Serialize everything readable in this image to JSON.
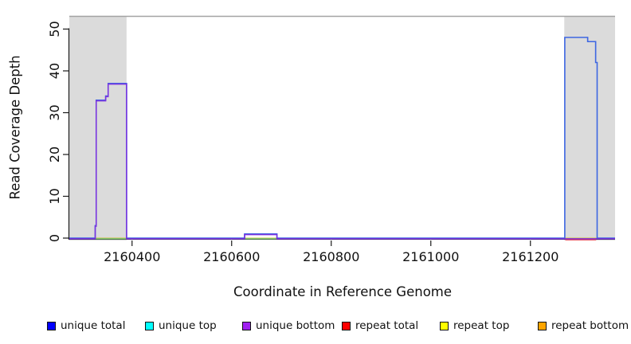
{
  "axes": {
    "x": {
      "title": "Coordinate in Reference Genome",
      "range": [
        2160274,
        2161370
      ],
      "ticks": [
        2160400,
        2160600,
        2160800,
        2161000,
        2161200
      ]
    },
    "y": {
      "title": "Read Coverage Depth",
      "range": [
        0,
        53
      ],
      "ticks": [
        0,
        10,
        20,
        30,
        40,
        50
      ]
    }
  },
  "chart_data": {
    "type": "line",
    "subtype": "step-coverage",
    "x_unit": "reference genome coordinate",
    "y_unit": "read coverage depth",
    "top_boundary_value": 53,
    "highlight_regions": [
      {
        "start": 2160274,
        "end": 2160389
      },
      {
        "start": 2161268,
        "end": 2161370
      }
    ],
    "series": [
      {
        "name": "unique-top",
        "label": "unique top",
        "color": "#00FFFF",
        "line_color": "#00CCCC",
        "baseline": true,
        "dy": 0.4,
        "width": 1.2,
        "segments": []
      },
      {
        "name": "repeat-top",
        "label": "repeat top",
        "color": "#FFFF00",
        "line_color": "#E8E800",
        "baseline": true,
        "dy": 0.4,
        "width": 1.2,
        "segments": []
      },
      {
        "name": "repeat-bottom",
        "label": "repeat bottom",
        "color": "#FFA500",
        "line_color": "#F0A000",
        "baseline": true,
        "dy": 0.4,
        "width": 1.2,
        "segments": []
      },
      {
        "name": "repeat-total",
        "label": "repeat total",
        "color": "#FF0000",
        "line_color": "#EE3344",
        "baseline": false,
        "dy": 2.0,
        "width": 1.5,
        "segments": [
          [
            2161270,
            2161332,
            0
          ]
        ]
      },
      {
        "name": "baseline-marker-green",
        "label": null,
        "color": "#7CCE7C",
        "line_color": "#7CCE7C",
        "baseline": false,
        "dy": 0.8,
        "width": 1.3,
        "segments": [
          [
            2160326,
            2160389,
            0
          ],
          [
            2160626,
            2160691,
            0
          ]
        ]
      },
      {
        "name": "unique-total",
        "label": "unique total",
        "color": "#0000FF",
        "line_color": "#3D66E2",
        "baseline": true,
        "dy": 0,
        "width": 1.6,
        "segments": [
          [
            2160326,
            2160328,
            3
          ],
          [
            2160328,
            2160347,
            33
          ],
          [
            2160347,
            2160352,
            34
          ],
          [
            2160352,
            2160389,
            37
          ],
          [
            2160626,
            2160691,
            1
          ],
          [
            2161269,
            2161315,
            48
          ],
          [
            2161315,
            2161331,
            47
          ],
          [
            2161331,
            2161334,
            42
          ]
        ]
      },
      {
        "name": "unique-bottom",
        "label": "unique bottom",
        "color": "#A020F0",
        "line_color": "#7B33E0",
        "baseline": true,
        "dy": 0.9,
        "width": 1.5,
        "segments": [
          [
            2160326,
            2160328,
            3
          ],
          [
            2160328,
            2160347,
            33
          ],
          [
            2160347,
            2160352,
            34
          ],
          [
            2160352,
            2160389,
            37
          ],
          [
            2160626,
            2160691,
            1
          ]
        ]
      }
    ]
  },
  "legend": {
    "items": [
      {
        "label": "unique total",
        "color": "#0000FF"
      },
      {
        "label": "unique top",
        "color": "#00FFFF"
      },
      {
        "label": "unique bottom",
        "color": "#A020F0"
      },
      {
        "label": "repeat total",
        "color": "#FF0000"
      },
      {
        "label": "repeat top",
        "color": "#FFFF00"
      },
      {
        "label": "repeat bottom",
        "color": "#FFA500"
      }
    ]
  },
  "colors": {
    "region_fill": "#DBDBDB",
    "top_boundary_line": "#A3A3A3",
    "axis": "#1A1A1A",
    "tick_label": "#111111"
  }
}
